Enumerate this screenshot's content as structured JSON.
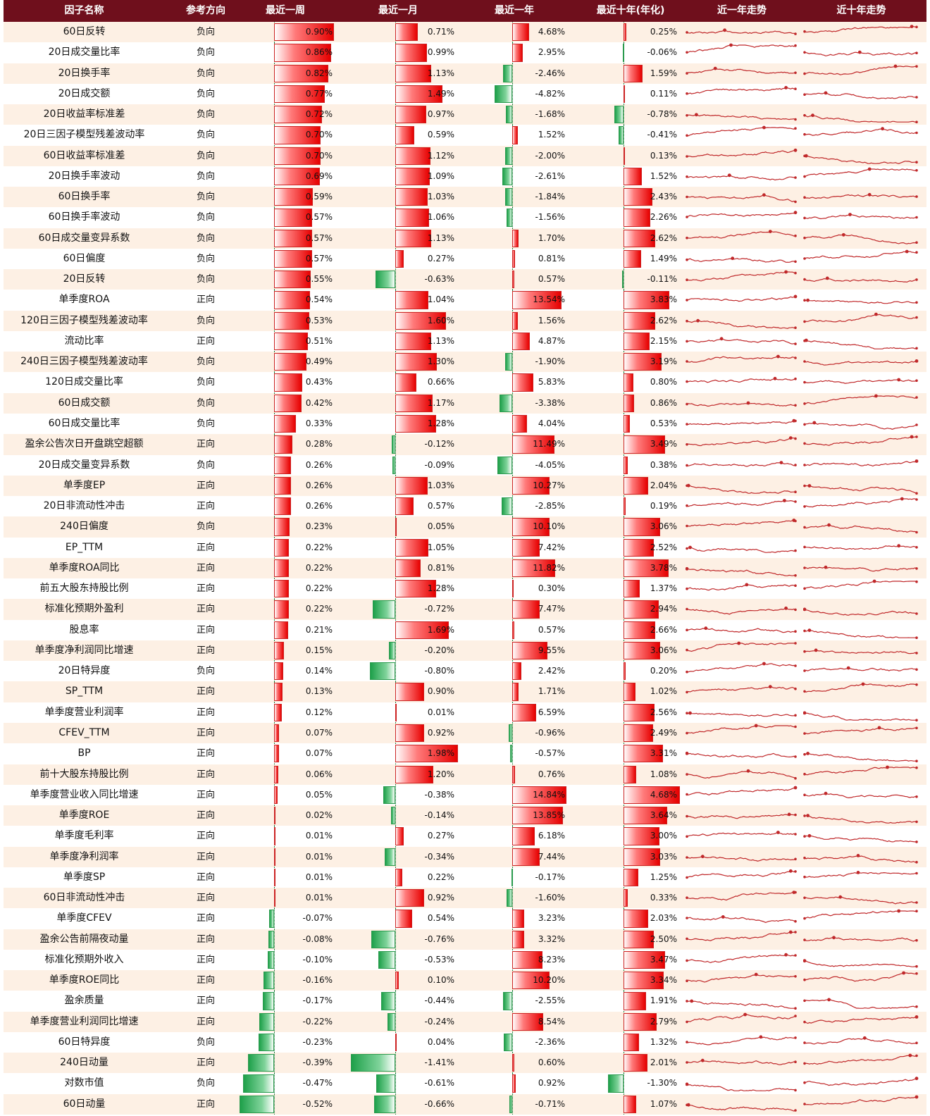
{
  "headers": [
    "因子名称",
    "参考方向",
    "最近一周",
    "最近一月",
    "最近一年",
    "最近十年(年化)",
    "近一年走势",
    "近十年走势"
  ],
  "colors": {
    "header_bg": "#6f0f1c",
    "positive": "#e60000",
    "negative": "#1ea04a",
    "trend": "#c0282a",
    "odd_row": "#fdf0e4"
  },
  "chart_data": {
    "type": "table",
    "series_names": [
      "最近一周",
      "最近一月",
      "最近一年",
      "最近十年(年化)"
    ],
    "rows": [
      {
        "name": "60日反转",
        "dir": "负向",
        "w": "0.90%",
        "m": "0.71%",
        "y": "4.68%",
        "t": "0.25%"
      },
      {
        "name": "20日成交量比率",
        "dir": "负向",
        "w": "0.86%",
        "m": "0.99%",
        "y": "2.95%",
        "t": "-0.06%"
      },
      {
        "name": "20日换手率",
        "dir": "负向",
        "w": "0.82%",
        "m": "1.13%",
        "y": "-2.46%",
        "t": "1.59%"
      },
      {
        "name": "20日成交额",
        "dir": "负向",
        "w": "0.77%",
        "m": "1.49%",
        "y": "-4.82%",
        "t": "0.11%"
      },
      {
        "name": "20日收益率标准差",
        "dir": "负向",
        "w": "0.72%",
        "m": "0.97%",
        "y": "-1.68%",
        "t": "-0.78%"
      },
      {
        "name": "20日三因子模型残差波动率",
        "dir": "负向",
        "w": "0.70%",
        "m": "0.59%",
        "y": "1.52%",
        "t": "-0.41%"
      },
      {
        "name": "60日收益率标准差",
        "dir": "负向",
        "w": "0.70%",
        "m": "1.12%",
        "y": "-2.00%",
        "t": "0.13%"
      },
      {
        "name": "20日换手率波动",
        "dir": "负向",
        "w": "0.69%",
        "m": "1.09%",
        "y": "-2.61%",
        "t": "1.52%"
      },
      {
        "name": "60日换手率",
        "dir": "负向",
        "w": "0.59%",
        "m": "1.03%",
        "y": "-1.84%",
        "t": "2.43%"
      },
      {
        "name": "60日换手率波动",
        "dir": "负向",
        "w": "0.57%",
        "m": "1.06%",
        "y": "-1.56%",
        "t": "2.26%"
      },
      {
        "name": "60日成交量变异系数",
        "dir": "负向",
        "w": "0.57%",
        "m": "1.13%",
        "y": "1.70%",
        "t": "2.62%"
      },
      {
        "name": "60日偏度",
        "dir": "负向",
        "w": "0.57%",
        "m": "0.27%",
        "y": "0.81%",
        "t": "1.49%"
      },
      {
        "name": "20日反转",
        "dir": "负向",
        "w": "0.55%",
        "m": "-0.63%",
        "y": "0.57%",
        "t": "-0.11%"
      },
      {
        "name": "单季度ROA",
        "dir": "正向",
        "w": "0.54%",
        "m": "1.04%",
        "y": "13.54%",
        "t": "3.83%"
      },
      {
        "name": "120日三因子模型残差波动率",
        "dir": "负向",
        "w": "0.53%",
        "m": "1.60%",
        "y": "1.56%",
        "t": "2.62%"
      },
      {
        "name": "流动比率",
        "dir": "正向",
        "w": "0.51%",
        "m": "1.13%",
        "y": "4.87%",
        "t": "2.15%"
      },
      {
        "name": "240日三因子模型残差波动率",
        "dir": "负向",
        "w": "0.49%",
        "m": "1.30%",
        "y": "-1.90%",
        "t": "3.19%"
      },
      {
        "name": "120日成交量比率",
        "dir": "负向",
        "w": "0.43%",
        "m": "0.66%",
        "y": "5.83%",
        "t": "0.80%"
      },
      {
        "name": "60日成交额",
        "dir": "负向",
        "w": "0.42%",
        "m": "1.17%",
        "y": "-3.38%",
        "t": "0.86%"
      },
      {
        "name": "60日成交量比率",
        "dir": "负向",
        "w": "0.33%",
        "m": "1.28%",
        "y": "4.04%",
        "t": "0.53%"
      },
      {
        "name": "盈余公告次日开盘跳空超额",
        "dir": "正向",
        "w": "0.28%",
        "m": "-0.12%",
        "y": "11.49%",
        "t": "3.49%"
      },
      {
        "name": "20日成交量变异系数",
        "dir": "负向",
        "w": "0.26%",
        "m": "-0.09%",
        "y": "-4.05%",
        "t": "0.38%"
      },
      {
        "name": "单季度EP",
        "dir": "正向",
        "w": "0.26%",
        "m": "1.03%",
        "y": "10.27%",
        "t": "2.04%"
      },
      {
        "name": "20日非流动性冲击",
        "dir": "正向",
        "w": "0.26%",
        "m": "0.57%",
        "y": "-2.85%",
        "t": "0.19%"
      },
      {
        "name": "240日偏度",
        "dir": "负向",
        "w": "0.23%",
        "m": "0.05%",
        "y": "10.10%",
        "t": "3.06%"
      },
      {
        "name": "EP_TTM",
        "dir": "正向",
        "w": "0.22%",
        "m": "1.05%",
        "y": "7.42%",
        "t": "2.52%"
      },
      {
        "name": "单季度ROA同比",
        "dir": "正向",
        "w": "0.22%",
        "m": "0.81%",
        "y": "11.82%",
        "t": "3.78%"
      },
      {
        "name": "前五大股东持股比例",
        "dir": "正向",
        "w": "0.22%",
        "m": "1.28%",
        "y": "0.30%",
        "t": "1.37%"
      },
      {
        "name": "标准化预期外盈利",
        "dir": "正向",
        "w": "0.22%",
        "m": "-0.72%",
        "y": "7.47%",
        "t": "2.94%"
      },
      {
        "name": "股息率",
        "dir": "正向",
        "w": "0.21%",
        "m": "1.69%",
        "y": "0.57%",
        "t": "2.66%"
      },
      {
        "name": "单季度净利润同比增速",
        "dir": "正向",
        "w": "0.15%",
        "m": "-0.20%",
        "y": "9.55%",
        "t": "3.06%"
      },
      {
        "name": "20日特异度",
        "dir": "负向",
        "w": "0.14%",
        "m": "-0.80%",
        "y": "2.42%",
        "t": "0.20%"
      },
      {
        "name": "SP_TTM",
        "dir": "正向",
        "w": "0.13%",
        "m": "0.90%",
        "y": "1.71%",
        "t": "1.02%"
      },
      {
        "name": "单季度营业利润率",
        "dir": "正向",
        "w": "0.12%",
        "m": "0.01%",
        "y": "6.59%",
        "t": "2.56%"
      },
      {
        "name": "CFEV_TTM",
        "dir": "正向",
        "w": "0.07%",
        "m": "0.92%",
        "y": "-0.96%",
        "t": "2.49%"
      },
      {
        "name": "BP",
        "dir": "正向",
        "w": "0.07%",
        "m": "1.98%",
        "y": "-0.57%",
        "t": "3.31%"
      },
      {
        "name": "前十大股东持股比例",
        "dir": "正向",
        "w": "0.06%",
        "m": "1.20%",
        "y": "0.76%",
        "t": "1.08%"
      },
      {
        "name": "单季度营业收入同比增速",
        "dir": "正向",
        "w": "0.05%",
        "m": "-0.38%",
        "y": "14.84%",
        "t": "4.68%"
      },
      {
        "name": "单季度ROE",
        "dir": "正向",
        "w": "0.02%",
        "m": "-0.14%",
        "y": "13.85%",
        "t": "3.64%"
      },
      {
        "name": "单季度毛利率",
        "dir": "正向",
        "w": "0.01%",
        "m": "0.27%",
        "y": "6.18%",
        "t": "3.00%"
      },
      {
        "name": "单季度净利润率",
        "dir": "正向",
        "w": "0.01%",
        "m": "-0.34%",
        "y": "7.44%",
        "t": "3.03%"
      },
      {
        "name": "单季度SP",
        "dir": "正向",
        "w": "0.01%",
        "m": "0.22%",
        "y": "-0.17%",
        "t": "1.25%"
      },
      {
        "name": "60日非流动性冲击",
        "dir": "正向",
        "w": "0.01%",
        "m": "0.92%",
        "y": "-1.60%",
        "t": "0.33%"
      },
      {
        "name": "单季度CFEV",
        "dir": "正向",
        "w": "-0.07%",
        "m": "0.54%",
        "y": "3.23%",
        "t": "2.03%"
      },
      {
        "name": "盈余公告前隔夜动量",
        "dir": "正向",
        "w": "-0.08%",
        "m": "-0.76%",
        "y": "3.32%",
        "t": "2.50%"
      },
      {
        "name": "标准化预期外收入",
        "dir": "正向",
        "w": "-0.10%",
        "m": "-0.53%",
        "y": "8.23%",
        "t": "3.47%"
      },
      {
        "name": "单季度ROE同比",
        "dir": "正向",
        "w": "-0.16%",
        "m": "0.10%",
        "y": "10.20%",
        "t": "3.34%"
      },
      {
        "name": "盈余质量",
        "dir": "正向",
        "w": "-0.17%",
        "m": "-0.44%",
        "y": "-2.55%",
        "t": "1.91%"
      },
      {
        "name": "单季度营业利润同比增速",
        "dir": "正向",
        "w": "-0.22%",
        "m": "-0.24%",
        "y": "8.54%",
        "t": "2.79%"
      },
      {
        "name": "60日特异度",
        "dir": "负向",
        "w": "-0.23%",
        "m": "0.04%",
        "y": "-2.36%",
        "t": "1.32%"
      },
      {
        "name": "240日动量",
        "dir": "正向",
        "w": "-0.39%",
        "m": "-1.41%",
        "y": "0.60%",
        "t": "2.01%"
      },
      {
        "name": "对数市值",
        "dir": "负向",
        "w": "-0.47%",
        "m": "-0.61%",
        "y": "0.92%",
        "t": "-1.30%"
      },
      {
        "name": "60日动量",
        "dir": "正向",
        "w": "-0.52%",
        "m": "-0.66%",
        "y": "-0.71%",
        "t": "1.07%"
      }
    ]
  }
}
